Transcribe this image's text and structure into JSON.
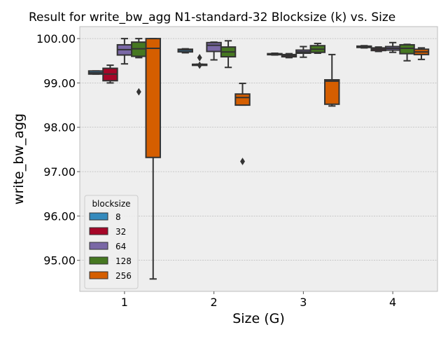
{
  "chart_data": {
    "type": "box",
    "title": "Result for write_bw_agg N1-standard-32 Blocksize (k) vs. Size",
    "xlabel": "Size (G)",
    "ylabel": "write_bw_agg",
    "categories": [
      "1",
      "2",
      "3",
      "4"
    ],
    "ylim": [
      94.3,
      100.27
    ],
    "yticks": [
      "95.00",
      "96.00",
      "97.00",
      "98.00",
      "99.00",
      "100.00"
    ],
    "grid": true,
    "legend": {
      "title": "blocksize",
      "placement": "lower-left"
    },
    "series": [
      {
        "name": "8",
        "color": "#348ABD",
        "boxes": [
          {
            "min": 99.2,
            "q1": 99.2,
            "median": 99.23,
            "q3": 99.27,
            "max": 99.27,
            "outliers": []
          },
          {
            "min": 99.68,
            "q1": 99.7,
            "median": 99.74,
            "q3": 99.76,
            "max": 99.77,
            "outliers": []
          },
          {
            "min": 99.63,
            "q1": 99.64,
            "median": 99.65,
            "q3": 99.66,
            "max": 99.67,
            "outliers": []
          },
          {
            "min": 99.79,
            "q1": 99.8,
            "median": 99.81,
            "q3": 99.83,
            "max": 99.84,
            "outliers": []
          }
        ]
      },
      {
        "name": "32",
        "color": "#A60628",
        "boxes": [
          {
            "min": 99.0,
            "q1": 99.05,
            "median": 99.2,
            "q3": 99.33,
            "max": 99.4,
            "outliers": []
          },
          {
            "min": 99.42,
            "q1": 99.42,
            "median": 99.42,
            "q3": 99.42,
            "max": 99.42,
            "outliers": [
              99.57,
              99.4
            ]
          },
          {
            "min": 99.57,
            "q1": 99.59,
            "median": 99.62,
            "q3": 99.64,
            "max": 99.66,
            "outliers": []
          },
          {
            "min": 99.71,
            "q1": 99.73,
            "median": 99.76,
            "q3": 99.79,
            "max": 99.81,
            "outliers": []
          }
        ]
      },
      {
        "name": "64",
        "color": "#7A68A6",
        "boxes": [
          {
            "min": 99.43,
            "q1": 99.63,
            "median": 99.75,
            "q3": 99.86,
            "max": 100.0,
            "outliers": []
          },
          {
            "min": 99.52,
            "q1": 99.71,
            "median": 99.85,
            "q3": 99.91,
            "max": 99.92,
            "outliers": []
          },
          {
            "min": 99.58,
            "q1": 99.67,
            "median": 99.7,
            "q3": 99.74,
            "max": 99.82,
            "outliers": []
          },
          {
            "min": 99.69,
            "q1": 99.74,
            "median": 99.78,
            "q3": 99.82,
            "max": 99.91,
            "outliers": []
          }
        ]
      },
      {
        "name": "128",
        "color": "#467821",
        "boxes": [
          {
            "min": 99.57,
            "q1": 99.6,
            "median": 99.77,
            "q3": 99.92,
            "max": 100.0,
            "outliers": [
              98.8
            ]
          },
          {
            "min": 99.35,
            "q1": 99.59,
            "median": 99.7,
            "q3": 99.81,
            "max": 99.95,
            "outliers": []
          },
          {
            "min": 99.67,
            "q1": 99.69,
            "median": 99.76,
            "q3": 99.84,
            "max": 99.89,
            "outliers": []
          },
          {
            "min": 99.5,
            "q1": 99.66,
            "median": 99.78,
            "q3": 99.86,
            "max": 99.87,
            "outliers": []
          }
        ]
      },
      {
        "name": "256",
        "color": "#D55E00",
        "boxes": [
          {
            "min": 94.58,
            "q1": 97.32,
            "median": 99.78,
            "q3": 100.0,
            "max": 100.0,
            "outliers": []
          },
          {
            "min": 98.5,
            "q1": 98.5,
            "median": 98.67,
            "q3": 98.75,
            "max": 98.99,
            "outliers": [
              97.23
            ]
          },
          {
            "min": 98.48,
            "q1": 98.52,
            "median": 99.04,
            "q3": 99.07,
            "max": 99.64,
            "outliers": []
          },
          {
            "min": 99.53,
            "q1": 99.64,
            "median": 99.7,
            "q3": 99.76,
            "max": 99.79,
            "outliers": []
          }
        ]
      }
    ]
  }
}
